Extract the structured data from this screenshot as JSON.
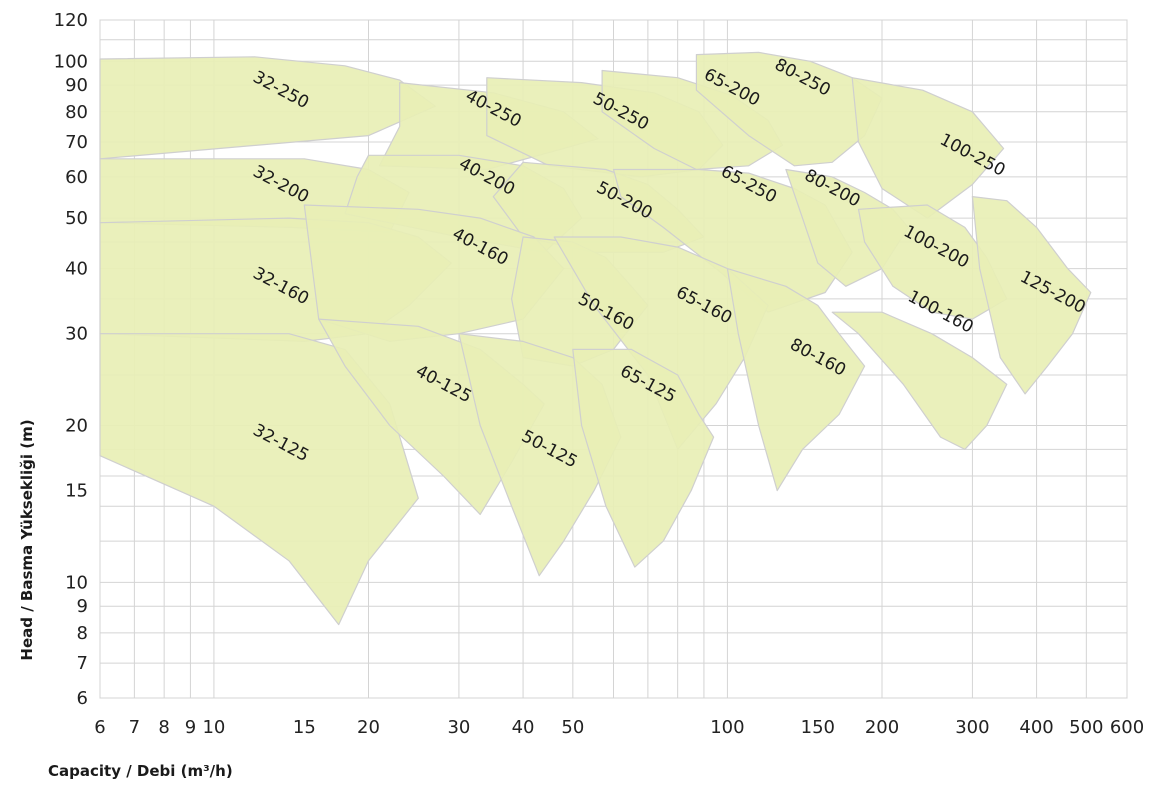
{
  "chart_data": {
    "type": "area",
    "xlabel": "Capacity / Debi (m³/h)",
    "ylabel": "Head / Basma Yüksekliği (m)",
    "xscale": "log",
    "yscale": "log",
    "xlim": [
      6,
      600
    ],
    "ylim": [
      6,
      120
    ],
    "grid": true,
    "x_ticks": [
      6,
      7,
      8,
      9,
      10,
      15,
      20,
      30,
      40,
      50,
      100,
      150,
      200,
      300,
      400,
      500,
      600
    ],
    "y_ticks": [
      6,
      7,
      8,
      9,
      10,
      15,
      20,
      30,
      40,
      50,
      60,
      70,
      80,
      90,
      100,
      120
    ],
    "fill_color": "#e8efb5",
    "edge_color": "#cfcfcf",
    "series": [
      {
        "name": "32-250",
        "label_at": [
          13.5,
          88
        ],
        "outline": [
          [
            6,
            101
          ],
          [
            12,
            102
          ],
          [
            18,
            98
          ],
          [
            23,
            92
          ],
          [
            27,
            82
          ],
          [
            20,
            72
          ],
          [
            6,
            65
          ]
        ]
      },
      {
        "name": "40-250",
        "label_at": [
          35,
          81
        ],
        "outline": [
          [
            23,
            91
          ],
          [
            35,
            87
          ],
          [
            48,
            80
          ],
          [
            56,
            71
          ],
          [
            48,
            68
          ],
          [
            34,
            62
          ],
          [
            21,
            63
          ],
          [
            23,
            75
          ]
        ]
      },
      {
        "name": "50-250",
        "label_at": [
          62,
          80
        ],
        "outline": [
          [
            34,
            93
          ],
          [
            52,
            91
          ],
          [
            72,
            87
          ],
          [
            88,
            80
          ],
          [
            98,
            69
          ],
          [
            88,
            62
          ],
          [
            68,
            60
          ],
          [
            45,
            63
          ],
          [
            34,
            72
          ]
        ]
      },
      {
        "name": "65-200",
        "label_at": [
          102,
          89
        ],
        "outline": [
          [
            57,
            96
          ],
          [
            80,
            93
          ],
          [
            102,
            86
          ],
          [
            120,
            77
          ],
          [
            128,
            69
          ],
          [
            110,
            63
          ],
          [
            87,
            62
          ],
          [
            72,
            68
          ],
          [
            57,
            80
          ]
        ]
      },
      {
        "name": "80-250",
        "label_at": [
          140,
          93
        ],
        "outline": [
          [
            87,
            103
          ],
          [
            115,
            104
          ],
          [
            145,
            100
          ],
          [
            175,
            93
          ],
          [
            200,
            85
          ],
          [
            185,
            72
          ],
          [
            160,
            64
          ],
          [
            135,
            63
          ],
          [
            110,
            72
          ],
          [
            87,
            88
          ]
        ]
      },
      {
        "name": "100-250",
        "label_at": [
          300,
          66
        ],
        "outline": [
          [
            175,
            93
          ],
          [
            240,
            88
          ],
          [
            300,
            80
          ],
          [
            345,
            68
          ],
          [
            300,
            58
          ],
          [
            245,
            50
          ],
          [
            200,
            57
          ],
          [
            180,
            70
          ]
        ]
      },
      {
        "name": "32-200",
        "label_at": [
          13.5,
          58
        ],
        "outline": [
          [
            6,
            65
          ],
          [
            15,
            65
          ],
          [
            20,
            62
          ],
          [
            24,
            56
          ],
          [
            22,
            47
          ],
          [
            14,
            48
          ],
          [
            6,
            49
          ]
        ]
      },
      {
        "name": "40-200",
        "label_at": [
          34,
          60
        ],
        "outline": [
          [
            20,
            66
          ],
          [
            30,
            66
          ],
          [
            40,
            63
          ],
          [
            48,
            57
          ],
          [
            52,
            50
          ],
          [
            44,
            43
          ],
          [
            30,
            46
          ],
          [
            18,
            51
          ],
          [
            19,
            60
          ]
        ]
      },
      {
        "name": "50-200",
        "label_at": [
          63,
          54
        ],
        "outline": [
          [
            40,
            64
          ],
          [
            58,
            62
          ],
          [
            70,
            58
          ],
          [
            80,
            52
          ],
          [
            90,
            46
          ],
          [
            75,
            43
          ],
          [
            55,
            43
          ],
          [
            40,
            46
          ],
          [
            35,
            55
          ]
        ]
      },
      {
        "name": "65-250",
        "label_at": [
          110,
          58
        ],
        "outline": [
          [
            60,
            62
          ],
          [
            88,
            62
          ],
          [
            110,
            61
          ],
          [
            135,
            57
          ],
          [
            155,
            53
          ],
          [
            175,
            43
          ],
          [
            155,
            36
          ],
          [
            120,
            33
          ],
          [
            95,
            40
          ],
          [
            75,
            48
          ],
          [
            62,
            55
          ]
        ]
      },
      {
        "name": "80-200",
        "label_at": [
          160,
          57
        ],
        "outline": [
          [
            130,
            62
          ],
          [
            160,
            60
          ],
          [
            185,
            56
          ],
          [
            210,
            52
          ],
          [
            225,
            48
          ],
          [
            200,
            40
          ],
          [
            170,
            37
          ],
          [
            150,
            41
          ],
          [
            140,
            50
          ]
        ]
      },
      {
        "name": "100-200",
        "label_at": [
          255,
          44
        ],
        "outline": [
          [
            180,
            52
          ],
          [
            245,
            53
          ],
          [
            290,
            48
          ],
          [
            320,
            42
          ],
          [
            350,
            35
          ],
          [
            300,
            32
          ],
          [
            250,
            33
          ],
          [
            210,
            37
          ],
          [
            185,
            45
          ]
        ]
      },
      {
        "name": "125-200",
        "label_at": [
          430,
          36
        ],
        "outline": [
          [
            300,
            55
          ],
          [
            350,
            54
          ],
          [
            400,
            48
          ],
          [
            460,
            40
          ],
          [
            510,
            36
          ],
          [
            470,
            30
          ],
          [
            420,
            26
          ],
          [
            380,
            23
          ],
          [
            340,
            27
          ],
          [
            310,
            40
          ]
        ]
      },
      {
        "name": "32-160",
        "label_at": [
          13.5,
          37
        ],
        "outline": [
          [
            6,
            49
          ],
          [
            14,
            50
          ],
          [
            20,
            49
          ],
          [
            25,
            46
          ],
          [
            29,
            41
          ],
          [
            24,
            34
          ],
          [
            20,
            30
          ],
          [
            15,
            29
          ],
          [
            6,
            30
          ]
        ]
      },
      {
        "name": "40-160",
        "label_at": [
          33,
          44
        ],
        "outline": [
          [
            15,
            53
          ],
          [
            25,
            52
          ],
          [
            33,
            50
          ],
          [
            42,
            46
          ],
          [
            48,
            40
          ],
          [
            40,
            32
          ],
          [
            30,
            30
          ],
          [
            22,
            29
          ],
          [
            16,
            32
          ]
        ]
      },
      {
        "name": "50-160",
        "label_at": [
          58,
          33
        ],
        "outline": [
          [
            40,
            46
          ],
          [
            50,
            45
          ],
          [
            58,
            42
          ],
          [
            65,
            37
          ],
          [
            70,
            34
          ],
          [
            60,
            28
          ],
          [
            50,
            26
          ],
          [
            40,
            27
          ],
          [
            38,
            35
          ]
        ]
      },
      {
        "name": "65-160",
        "label_at": [
          90,
          34
        ],
        "outline": [
          [
            46,
            46
          ],
          [
            62,
            46
          ],
          [
            80,
            44
          ],
          [
            100,
            40
          ],
          [
            120,
            34
          ],
          [
            108,
            27
          ],
          [
            95,
            22
          ],
          [
            80,
            18
          ],
          [
            70,
            25
          ],
          [
            55,
            34
          ]
        ]
      },
      {
        "name": "80-160",
        "label_at": [
          150,
          27
        ],
        "outline": [
          [
            100,
            40
          ],
          [
            130,
            37
          ],
          [
            150,
            34
          ],
          [
            165,
            30
          ],
          [
            185,
            26
          ],
          [
            165,
            21
          ],
          [
            140,
            18
          ],
          [
            125,
            15
          ],
          [
            115,
            20
          ],
          [
            105,
            30
          ]
        ]
      },
      {
        "name": "100-160",
        "label_at": [
          260,
          33
        ],
        "outline": [
          [
            160,
            33
          ],
          [
            200,
            33
          ],
          [
            250,
            30
          ],
          [
            300,
            27
          ],
          [
            350,
            24
          ],
          [
            320,
            20
          ],
          [
            290,
            18
          ],
          [
            260,
            19
          ],
          [
            220,
            24
          ],
          [
            180,
            30
          ]
        ]
      },
      {
        "name": "32-125",
        "label_at": [
          13.5,
          18.5
        ],
        "outline": [
          [
            6,
            30
          ],
          [
            14,
            30
          ],
          [
            18,
            28
          ],
          [
            22,
            22
          ],
          [
            25,
            14.5
          ],
          [
            20,
            11
          ],
          [
            17.5,
            8.3
          ],
          [
            14,
            11
          ],
          [
            10,
            14
          ],
          [
            6,
            17.5
          ]
        ]
      },
      {
        "name": "40-125",
        "label_at": [
          28,
          24
        ],
        "outline": [
          [
            16,
            32
          ],
          [
            25,
            31
          ],
          [
            33,
            28
          ],
          [
            40,
            24
          ],
          [
            44,
            22
          ],
          [
            38,
            17
          ],
          [
            33,
            13.5
          ],
          [
            28,
            16
          ],
          [
            22,
            20
          ],
          [
            18,
            26
          ]
        ]
      },
      {
        "name": "50-125",
        "label_at": [
          45,
          18
        ],
        "outline": [
          [
            30,
            30
          ],
          [
            40,
            29
          ],
          [
            50,
            27
          ],
          [
            57,
            24
          ],
          [
            62,
            19
          ],
          [
            55,
            15
          ],
          [
            48,
            12
          ],
          [
            43,
            10.3
          ],
          [
            38,
            14
          ],
          [
            33,
            20
          ]
        ]
      },
      {
        "name": "65-125",
        "label_at": [
          70,
          24
        ],
        "outline": [
          [
            50,
            28
          ],
          [
            65,
            28
          ],
          [
            80,
            25
          ],
          [
            88,
            21
          ],
          [
            94,
            19
          ],
          [
            85,
            15
          ],
          [
            75,
            12
          ],
          [
            66,
            10.7
          ],
          [
            58,
            14
          ],
          [
            52,
            20
          ]
        ]
      }
    ]
  }
}
